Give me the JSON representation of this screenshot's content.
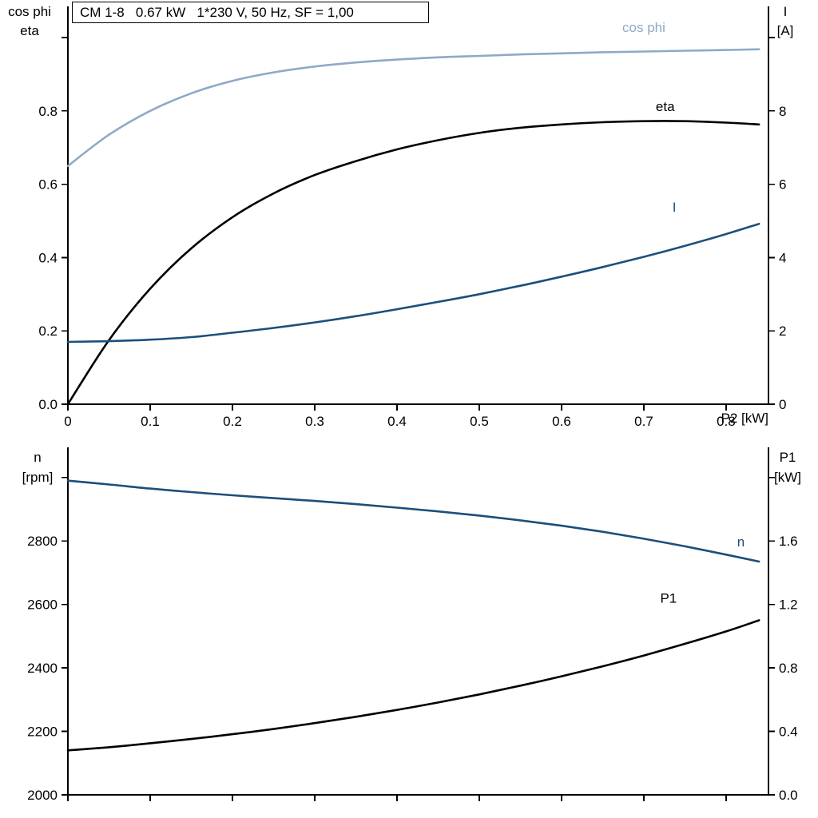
{
  "header": {
    "title_box": "CM 1-8   0.67 kW   1*230 V, 50 Hz, SF = 1,00"
  },
  "colors": {
    "black": "#000000",
    "dark_blue": "#1b4f7c",
    "light_blue": "#8fa9c6",
    "axis": "#000000",
    "background": "#ffffff"
  },
  "chart_data": [
    {
      "type": "line",
      "position": "top",
      "left_axis_title": [
        "cos phi",
        "eta"
      ],
      "right_axis_title": [
        "I",
        "[A]"
      ],
      "x_axis_title": "P2 [kW]",
      "grid": false,
      "legend_position": "inline-curve-labels",
      "xlim": [
        0,
        0.8515
      ],
      "xticks": {
        "values": [
          0,
          0.1,
          0.2,
          0.3,
          0.4,
          0.5,
          0.6,
          0.7,
          0.8
        ],
        "labels": [
          "0",
          "0.1",
          "0.2",
          "0.3",
          "0.4",
          "0.5",
          "0.6",
          "0.7",
          "0.8"
        ]
      },
      "left_axis": {
        "lim": [
          0,
          1.085
        ],
        "ticks": {
          "values": [
            0,
            0.2,
            0.4,
            0.6,
            0.8,
            1.0
          ],
          "labels": [
            "0.0",
            "0.2",
            "0.4",
            "0.6",
            "0.8",
            ""
          ]
        }
      },
      "right_axis": {
        "lim": [
          0,
          10.85
        ],
        "ticks": {
          "values": [
            0,
            2,
            4,
            6,
            8,
            10
          ],
          "labels": [
            "0",
            "2",
            "4",
            "6",
            "8",
            ""
          ]
        }
      },
      "x": [
        0,
        0.05,
        0.1,
        0.15,
        0.2,
        0.25,
        0.3,
        0.35,
        0.4,
        0.45,
        0.5,
        0.55,
        0.6,
        0.65,
        0.7,
        0.75,
        0.8,
        0.84
      ],
      "series": [
        {
          "name": "cos phi",
          "axis": "left",
          "color_key": "light_blue",
          "values": [
            0.65,
            0.735,
            0.8,
            0.848,
            0.882,
            0.905,
            0.921,
            0.932,
            0.94,
            0.946,
            0.95,
            0.954,
            0.957,
            0.96,
            0.962,
            0.964,
            0.966,
            0.968
          ],
          "label": {
            "text": "cos phi",
            "x": 0.7,
            "y": 1.015
          }
        },
        {
          "name": "eta",
          "axis": "left",
          "color_key": "black",
          "values": [
            0.0,
            0.175,
            0.315,
            0.425,
            0.51,
            0.575,
            0.625,
            0.663,
            0.695,
            0.72,
            0.74,
            0.754,
            0.763,
            0.769,
            0.772,
            0.772,
            0.768,
            0.763
          ],
          "label": {
            "text": "eta",
            "x": 0.726,
            "y": 0.8
          }
        },
        {
          "name": "I",
          "axis": "right",
          "color_key": "dark_blue",
          "values": [
            1.7,
            1.72,
            1.76,
            1.83,
            1.95,
            2.08,
            2.23,
            2.4,
            2.59,
            2.79,
            3.0,
            3.23,
            3.48,
            3.74,
            4.02,
            4.32,
            4.64,
            4.92
          ],
          "label": {
            "text": "I",
            "x": 0.737,
            "y": 5.25
          }
        }
      ]
    },
    {
      "type": "line",
      "position": "bottom",
      "left_axis_title": [
        "n",
        "[rpm]"
      ],
      "right_axis_title": [
        "P1",
        "[kW]"
      ],
      "x_axis_title": "",
      "grid": false,
      "legend_position": "inline-curve-labels",
      "xlim": [
        0,
        0.8515
      ],
      "xticks": {
        "values": [
          0,
          0.1,
          0.2,
          0.3,
          0.4,
          0.5,
          0.6,
          0.7,
          0.8
        ],
        "labels": [
          "",
          "",
          "",
          "",
          "",
          "",
          "",
          "",
          ""
        ]
      },
      "left_axis": {
        "lim": [
          2000,
          3095
        ],
        "ticks": {
          "values": [
            2000,
            2200,
            2400,
            2600,
            2800,
            3000
          ],
          "labels": [
            "2000",
            "2200",
            "2400",
            "2600",
            "2800",
            ""
          ]
        }
      },
      "right_axis": {
        "lim": [
          0,
          2.19
        ],
        "ticks": {
          "values": [
            0,
            0.4,
            0.8,
            1.2,
            1.6,
            2.0
          ],
          "labels": [
            "0.0",
            "0.4",
            "0.8",
            "1.2",
            "1.6",
            ""
          ]
        }
      },
      "x": [
        0,
        0.05,
        0.1,
        0.15,
        0.2,
        0.25,
        0.3,
        0.35,
        0.4,
        0.45,
        0.5,
        0.55,
        0.6,
        0.65,
        0.7,
        0.75,
        0.8,
        0.84
      ],
      "series": [
        {
          "name": "n",
          "axis": "left",
          "color_key": "dark_blue",
          "values": [
            2990,
            2978,
            2965,
            2954,
            2944,
            2935,
            2926,
            2916,
            2905,
            2893,
            2880,
            2865,
            2848,
            2829,
            2807,
            2783,
            2757,
            2735
          ],
          "label": {
            "text": "n",
            "x": 0.818,
            "y": 2783
          }
        },
        {
          "name": "P1",
          "axis": "right",
          "color_key": "black",
          "values": [
            0.28,
            0.3,
            0.325,
            0.352,
            0.382,
            0.415,
            0.452,
            0.492,
            0.535,
            0.582,
            0.633,
            0.688,
            0.747,
            0.81,
            0.878,
            0.952,
            1.03,
            1.1
          ],
          "label": {
            "text": "P1",
            "x": 0.73,
            "y": 1.21
          }
        }
      ]
    }
  ]
}
